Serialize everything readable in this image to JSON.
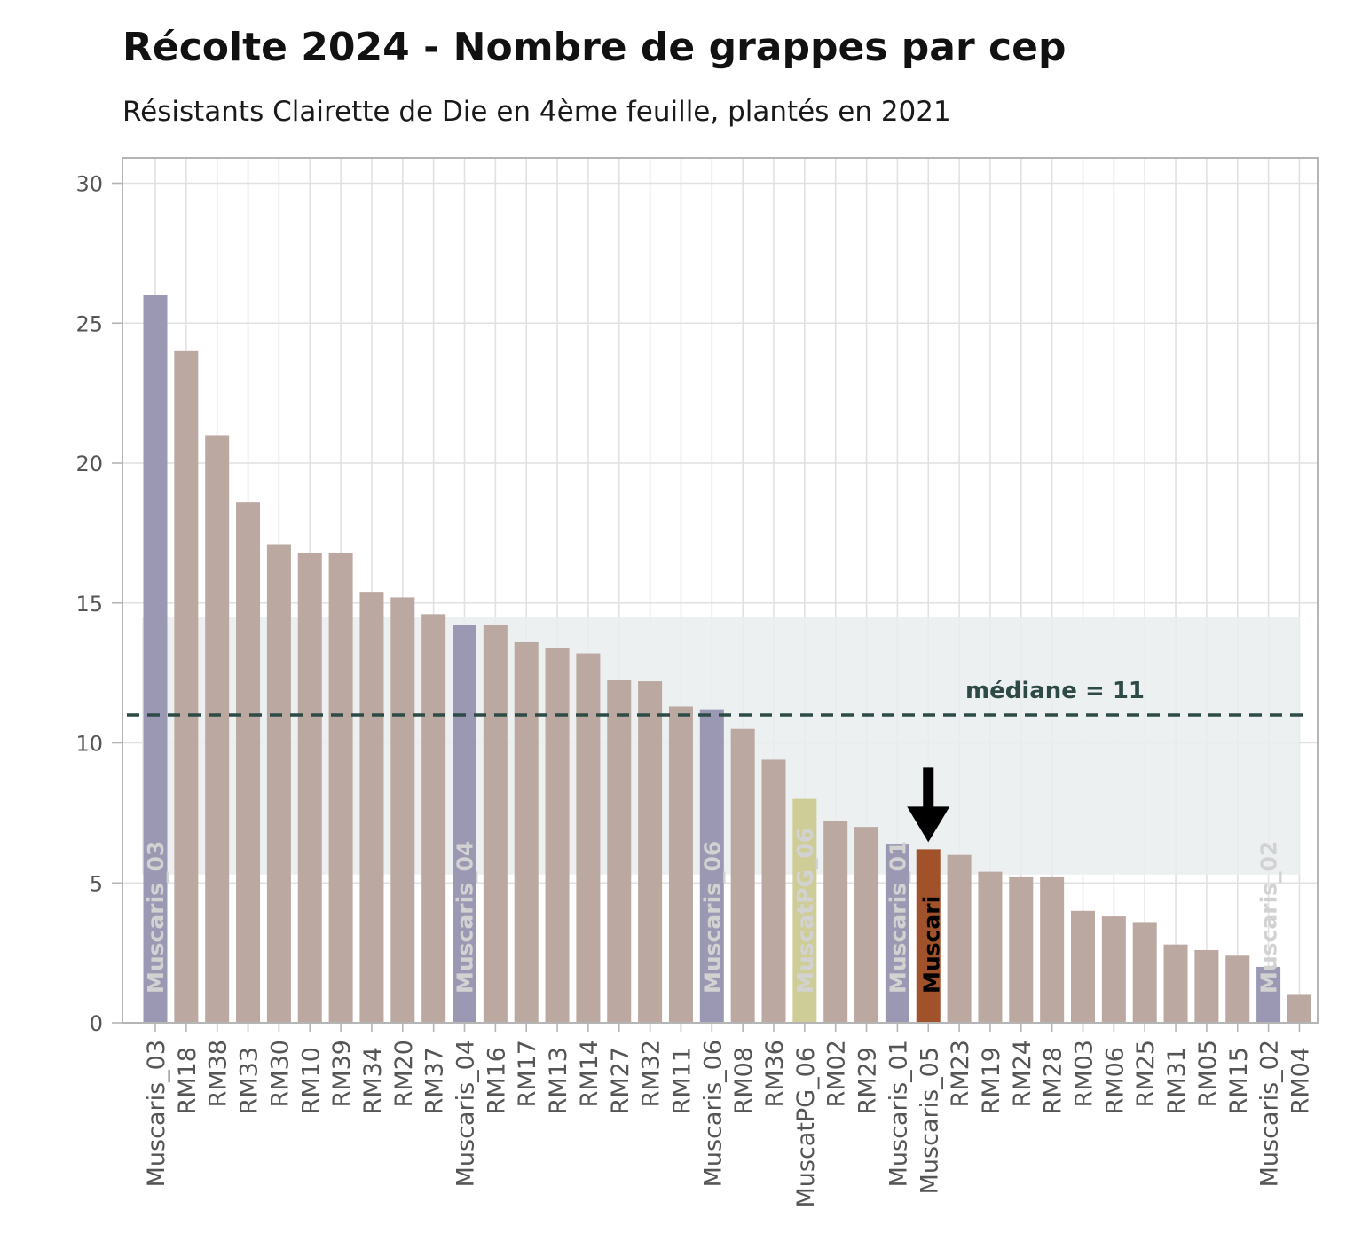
{
  "chart_data": {
    "type": "bar",
    "title": "Récolte 2024 - Nombre de grappes par cep",
    "subtitle": "Résistants Clairette de Die en 4ème feuille, plantés en 2021",
    "xlabel": "",
    "ylabel": "",
    "ylim": [
      0,
      30
    ],
    "yticks": [
      0,
      5,
      10,
      15,
      20,
      25,
      30
    ],
    "grid": true,
    "categories": [
      "Muscaris_03",
      "RM18",
      "RM38",
      "RM33",
      "RM30",
      "RM10",
      "RM39",
      "RM34",
      "RM20",
      "RM37",
      "Muscaris_04",
      "RM16",
      "RM17",
      "RM13",
      "RM14",
      "RM27",
      "RM32",
      "RM11",
      "Muscaris_06",
      "RM08",
      "RM36",
      "MuscatPG_06",
      "RM02",
      "RM29",
      "Muscaris_01",
      "Muscaris_05",
      "RM23",
      "RM19",
      "RM24",
      "RM28",
      "RM03",
      "RM06",
      "RM25",
      "RM31",
      "RM05",
      "RM15",
      "Muscaris_02",
      "RM04"
    ],
    "values": [
      26,
      24,
      21,
      18.6,
      17.1,
      16.8,
      16.8,
      15.4,
      15.2,
      14.6,
      14.2,
      14.2,
      13.6,
      13.4,
      13.2,
      12.25,
      12.2,
      11.3,
      11.2,
      10.5,
      9.4,
      8,
      7.2,
      7,
      6.4,
      6.2,
      6,
      5.4,
      5.2,
      5.2,
      4,
      3.8,
      3.6,
      2.8,
      2.6,
      2.4,
      2,
      1
    ],
    "groups": [
      "Muscaris",
      "RM",
      "RM",
      "RM",
      "RM",
      "RM",
      "RM",
      "RM",
      "RM",
      "RM",
      "Muscaris",
      "RM",
      "RM",
      "RM",
      "RM",
      "RM",
      "RM",
      "RM",
      "Muscaris",
      "RM",
      "RM",
      "MuscatPG",
      "RM",
      "RM",
      "Muscaris",
      "Highlight",
      "RM",
      "RM",
      "RM",
      "RM",
      "RM",
      "RM",
      "RM",
      "RM",
      "RM",
      "RM",
      "Muscaris",
      "RM"
    ],
    "group_colors": {
      "Muscaris": "#9a98b2",
      "RM": "#baa8a1",
      "MuscatPG": "#cfcd97",
      "Highlight": "#a1522b"
    },
    "median": {
      "value": 11,
      "label": "médiane = 11",
      "color": "#2e4a47"
    },
    "band": {
      "ymin": 5.3,
      "ymax": 14.5,
      "color": "#e9eded"
    },
    "in_bar_labels": [
      {
        "index": 0,
        "text": "Muscaris_03"
      },
      {
        "index": 10,
        "text": "Muscaris_04"
      },
      {
        "index": 18,
        "text": "Muscaris_06"
      },
      {
        "index": 21,
        "text": "MuscatPG_06"
      },
      {
        "index": 24,
        "text": "Muscaris_01"
      },
      {
        "index": 25,
        "text": "Muscari"
      },
      {
        "index": 36,
        "text": "Muscaris_02"
      }
    ]
  }
}
